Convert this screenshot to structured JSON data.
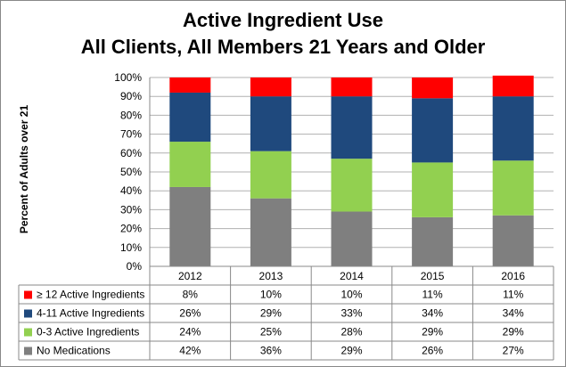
{
  "chart_data": {
    "type": "bar",
    "stacked": true,
    "title_lines": [
      "Active Ingredient Use",
      "All Clients, All Members 21 Years and Older"
    ],
    "xlabel": "",
    "ylabel": "Percent of Adults over 21",
    "ylim": [
      0,
      100
    ],
    "yticks": [
      "0%",
      "10%",
      "20%",
      "30%",
      "40%",
      "50%",
      "60%",
      "70%",
      "80%",
      "90%",
      "100%"
    ],
    "categories": [
      "2012",
      "2013",
      "2014",
      "2015",
      "2016"
    ],
    "series": [
      {
        "name": "No Medications",
        "color": "#7f7f7f",
        "values": [
          42,
          36,
          29,
          26,
          27
        ],
        "labels": [
          "42%",
          "36%",
          "29%",
          "26%",
          "27%"
        ]
      },
      {
        "name": "0-3 Active Ingredients",
        "color": "#92d050",
        "values": [
          24,
          25,
          28,
          29,
          29
        ],
        "labels": [
          "24%",
          "25%",
          "28%",
          "29%",
          "29%"
        ]
      },
      {
        "name": "4-11 Active Ingredients",
        "color": "#1f497d",
        "values": [
          26,
          29,
          33,
          34,
          34
        ],
        "labels": [
          "26%",
          "29%",
          "33%",
          "34%",
          "34%"
        ]
      },
      {
        "name": "≥ 12 Active Ingredients",
        "color": "#ff0000",
        "values": [
          8,
          10,
          10,
          11,
          11
        ],
        "labels": [
          "8%",
          "10%",
          "10%",
          "11%",
          "11%"
        ]
      }
    ],
    "table_row_order": [
      3,
      2,
      1,
      0
    ],
    "grid": true
  }
}
